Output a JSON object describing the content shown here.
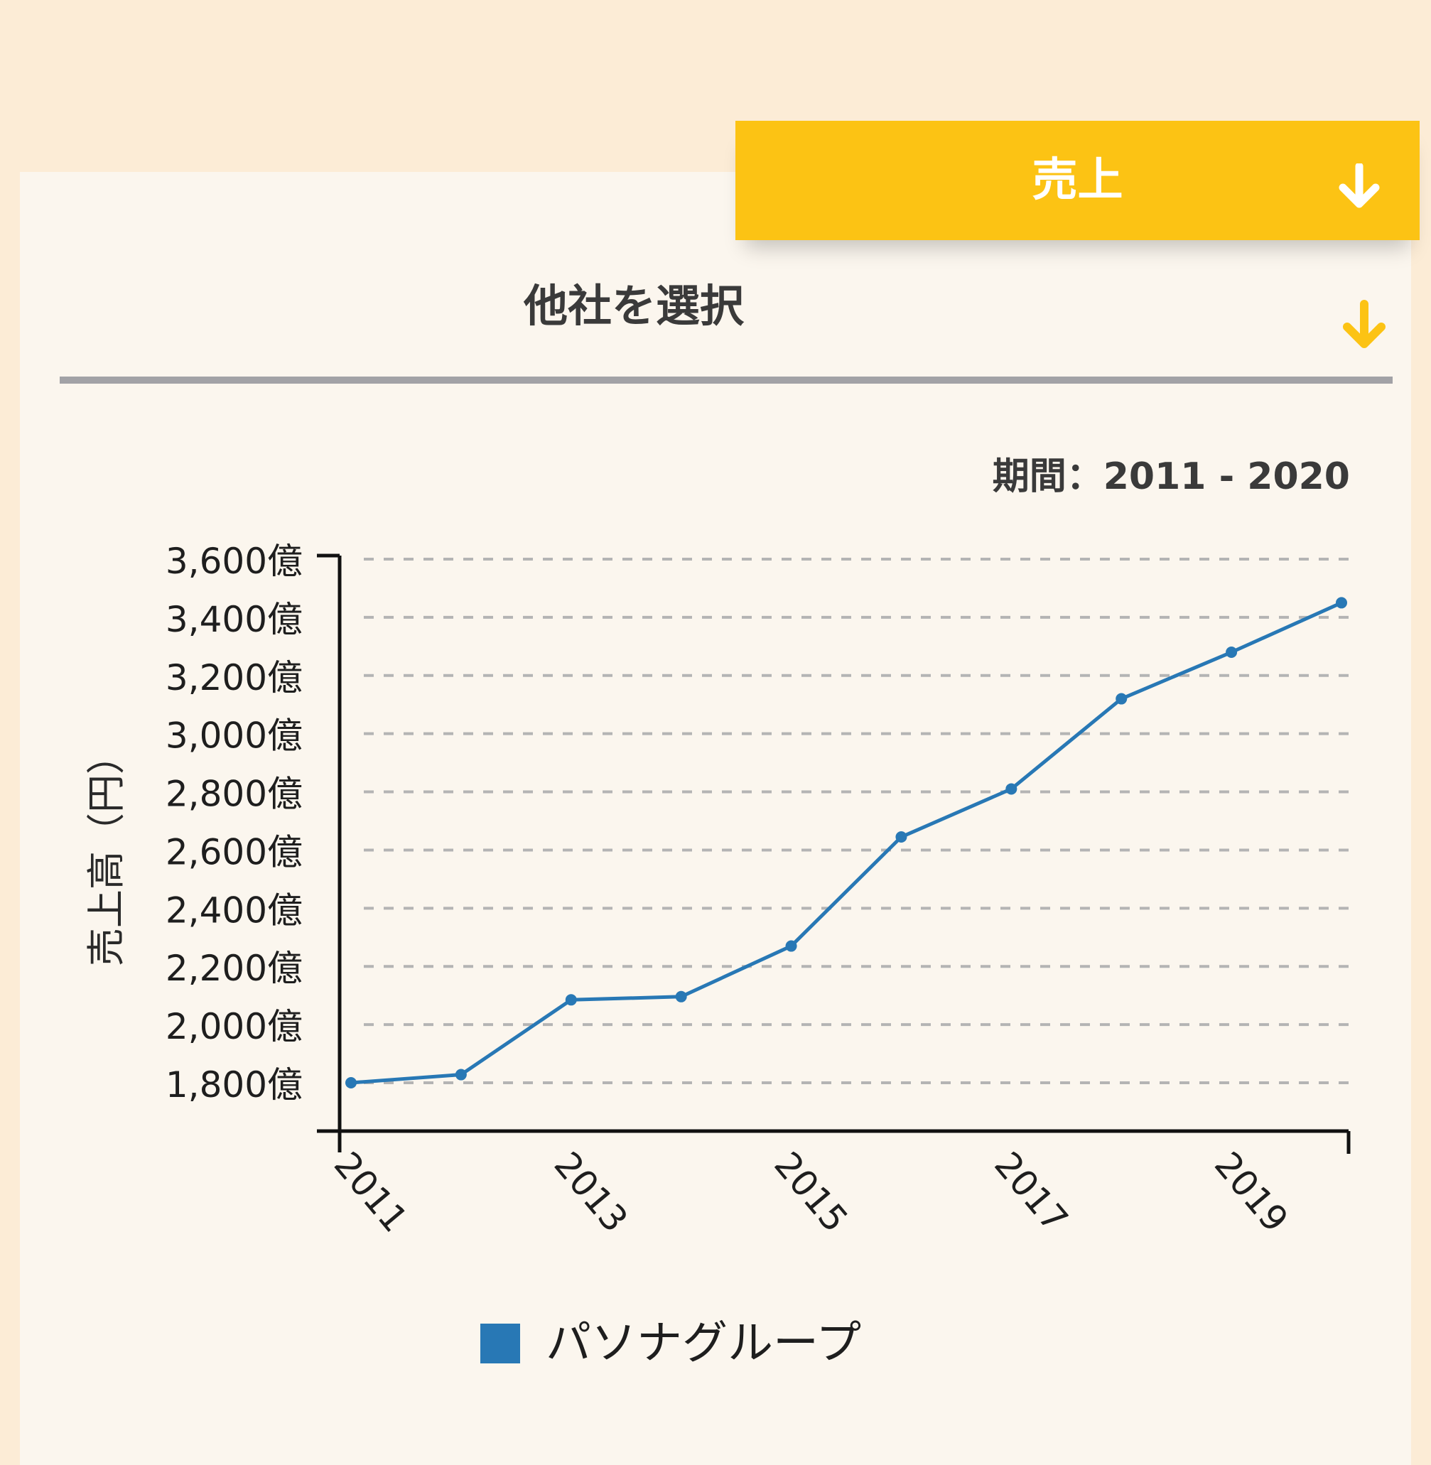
{
  "metric_selector": {
    "label": "売上",
    "icon": "arrow-down-icon"
  },
  "company_selector": {
    "label": "他社を選択",
    "icon": "arrow-down-icon"
  },
  "period": {
    "text": "期間：2011 - 2020"
  },
  "colors": {
    "accent": "#fcc314",
    "series": "#2878b5",
    "page_bg": "#fcecd6",
    "card_bg": "#fbf6ee"
  },
  "chart_data": {
    "type": "line",
    "ylabel": "売上高（円）",
    "ylim": [
      1800,
      3600
    ],
    "y_ticks": [
      1800,
      2000,
      2200,
      2400,
      2600,
      2800,
      3000,
      3200,
      3400,
      3600
    ],
    "y_tick_labels": [
      "1,800億",
      "2,000億",
      "2,200億",
      "2,400億",
      "2,600億",
      "2,800億",
      "3,000億",
      "3,200億",
      "3,400億",
      "3,600億"
    ],
    "x_tick_labels": [
      "2011",
      "2013",
      "2015",
      "2017",
      "2019"
    ],
    "grid": true,
    "legend_position": "bottom",
    "series": [
      {
        "name": "パソナグループ",
        "x": [
          2011,
          2012,
          2013,
          2014,
          2015,
          2016,
          2017,
          2018,
          2019,
          2020
        ],
        "values": [
          1800,
          1828,
          2085,
          2096,
          2270,
          2645,
          2810,
          3120,
          3280,
          3450
        ]
      }
    ]
  }
}
